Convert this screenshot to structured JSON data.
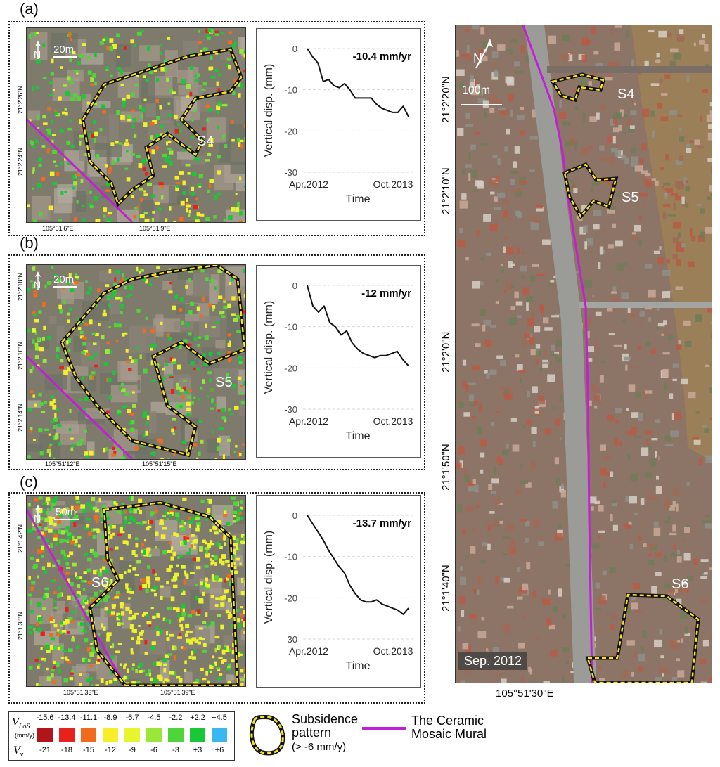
{
  "panels": [
    {
      "letter": "(a)",
      "scale": "20m",
      "site": "S4",
      "xticks": [
        "105°51'6\"E",
        "105°51'9\"E"
      ],
      "yticks": [
        "21°2'26\"N",
        "21°2'24\"N"
      ],
      "ts": {
        "rate": "-10.4 mm/yr",
        "ylabel": "Vertical disp. (mm)",
        "xlabel": "Time",
        "x_ticks": [
          "Apr.2012",
          "Oct.2013"
        ],
        "y_ticks": [
          "0",
          "-10",
          "-20",
          "-30"
        ]
      }
    },
    {
      "letter": "(b)",
      "scale": "20m",
      "site": "S5",
      "xticks": [
        "105°51'12\"E",
        "105°51'15\"E"
      ],
      "yticks": [
        "21°2'18\"N",
        "21°2'16\"N",
        "21°2'14\"N"
      ],
      "ts": {
        "rate": "-12 mm/yr",
        "ylabel": "Vertical disp. (mm)",
        "xlabel": "Time",
        "x_ticks": [
          "Apr.2012",
          "Oct.2013"
        ],
        "y_ticks": [
          "0",
          "-10",
          "-20",
          "-30"
        ]
      }
    },
    {
      "letter": "(c)",
      "scale": "50m",
      "site": "S6",
      "xticks": [
        "105°51'33\"E",
        "105°51'39\"E"
      ],
      "yticks": [
        "21°1'42\"N",
        "21°1'38\"N"
      ],
      "ts": {
        "rate": "-13.7 mm/yr",
        "ylabel": "Vertical disp. (mm)",
        "xlabel": "Time",
        "x_ticks": [
          "Apr.2012",
          "Oct.2013"
        ],
        "y_ticks": [
          "0",
          "-10",
          "-20",
          "-30"
        ]
      }
    }
  ],
  "overview": {
    "scale": "100m",
    "date": "Sep. 2012",
    "sites": [
      "S4",
      "S5",
      "S6"
    ],
    "yticks": [
      "21°2'20\"N",
      "21°2'10\"N",
      "21°2'0\"N",
      "21°1'50\"N",
      "21°1'40\"N"
    ],
    "xtick": "105°51'30\"E"
  },
  "legend": {
    "vlos_label": "V",
    "vlos_sub": "LoS",
    "vv_label": "V",
    "vv_sub": "v",
    "unit": "(mm/y)",
    "top_values": [
      "-15.6",
      "-13.4",
      "-11.1",
      "-8.9",
      "-6.7",
      "-4.5",
      "-2.2",
      "+2.2",
      "+4.5"
    ],
    "bottom_values": [
      "-21",
      "-18",
      "-15",
      "-12",
      "-9",
      "-6",
      "-3",
      "+3",
      "+6"
    ],
    "colors": [
      "#b0151a",
      "#e8201e",
      "#f26a1c",
      "#f7ee2a",
      "#e6f52d",
      "#9ae63a",
      "#4fd43a",
      "#19c839",
      "#38b7f0"
    ],
    "pattern_label": "Subsidence pattern",
    "pattern_sub": "(> -6 mm/y)",
    "mural_label": "The Ceramic Mosaic Mural",
    "mural_color": "#c21fd6",
    "outline_color": "#f5e12a"
  },
  "chart_data": [
    {
      "type": "line",
      "title": "",
      "xlabel": "Time",
      "ylabel": "Vertical disp. (mm)",
      "ylim": [
        -30,
        0
      ],
      "x_range": [
        "Apr.2012",
        "Oct.2013"
      ],
      "annotation": "-10.4 mm/yr",
      "series": [
        {
          "values": [
            0,
            -2,
            -3.5,
            -8,
            -7.5,
            -9,
            -9.5,
            -8.5,
            -10,
            -12,
            -12,
            -12,
            -12,
            -13.5,
            -14.5,
            -15,
            -15.5,
            -15.5,
            -14,
            -16.5
          ]
        }
      ]
    },
    {
      "type": "line",
      "title": "",
      "xlabel": "Time",
      "ylabel": "Vertical disp. (mm)",
      "ylim": [
        -30,
        0
      ],
      "x_range": [
        "Apr.2012",
        "Oct.2013"
      ],
      "annotation": "-12 mm/yr",
      "series": [
        {
          "values": [
            0,
            -5,
            -6.5,
            -5,
            -9,
            -10,
            -12,
            -11,
            -14,
            -15.5,
            -16.5,
            -17,
            -17.5,
            -17,
            -17,
            -16.5,
            -16,
            -18,
            -19.5
          ]
        }
      ]
    },
    {
      "type": "line",
      "title": "",
      "xlabel": "Time",
      "ylabel": "Vertical disp. (mm)",
      "ylim": [
        -30,
        0
      ],
      "x_range": [
        "Apr.2012",
        "Oct.2013"
      ],
      "annotation": "-13.7 mm/yr",
      "series": [
        {
          "values": [
            0,
            -2,
            -4,
            -6,
            -8.5,
            -10.5,
            -12.5,
            -14,
            -17,
            -19,
            -20.5,
            -21,
            -21,
            -20.5,
            -21.5,
            -22,
            -22.5,
            -23,
            -24,
            -22.5
          ]
        }
      ]
    }
  ]
}
